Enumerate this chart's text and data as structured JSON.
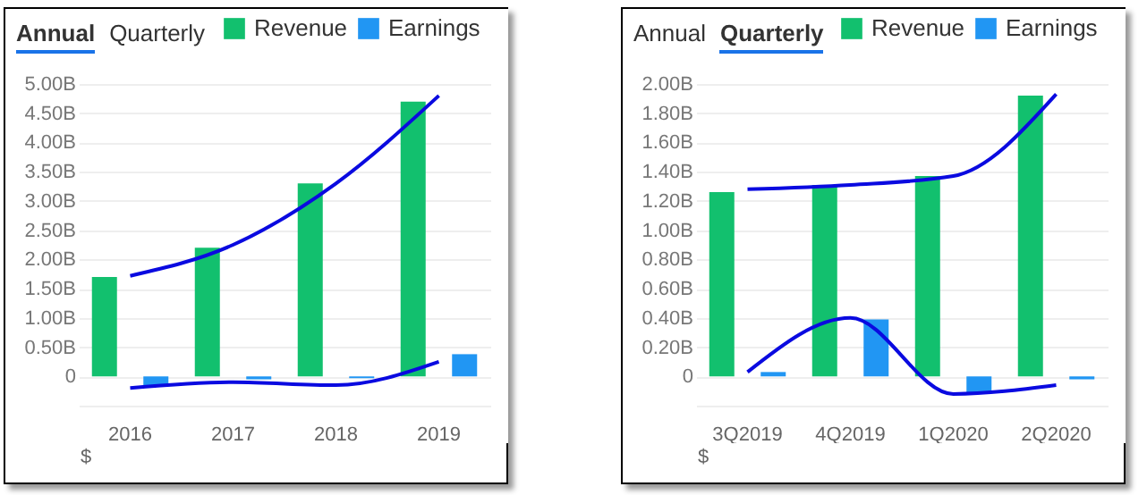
{
  "chart_data": [
    {
      "type": "bar",
      "annotations": [
        "Annual",
        "Quarterly",
        "$"
      ],
      "categories": [
        "2016",
        "2017",
        "2018",
        "2019"
      ],
      "series": [
        {
          "name": "Revenue",
          "color": "#12c06e",
          "values": [
            1.7,
            2.2,
            3.3,
            4.7
          ]
        },
        {
          "name": "Earnings",
          "color": "#2196f3",
          "values": [
            -0.17,
            -0.05,
            -0.03,
            0.38
          ]
        },
        {
          "type": "line",
          "color": "#0a0ae0",
          "values": [
            1.72,
            2.25,
            3.3,
            4.8
          ]
        },
        {
          "type": "line",
          "color": "#0a0ae0",
          "values": [
            -0.2,
            -0.1,
            -0.15,
            0.25
          ]
        }
      ],
      "ylim": [
        -0.5,
        5.0
      ],
      "yticks": [
        {
          "value": -0.5,
          "label": null
        },
        0,
        {
          "value": 0.5,
          "label": "0.50B"
        },
        {
          "value": 1.0,
          "label": "1.00B"
        },
        {
          "value": 1.5,
          "label": "1.50B"
        },
        {
          "value": 2.0,
          "label": "2.00B"
        },
        {
          "value": 2.5,
          "label": "2.50B"
        },
        {
          "value": 3.0,
          "label": "3.00B"
        },
        {
          "value": 3.5,
          "label": "3.50B"
        },
        {
          "value": 4.0,
          "label": "4.00B"
        },
        {
          "value": 4.5,
          "label": "4.50B"
        },
        {
          "value": 5.0,
          "label": "5.00B"
        }
      ],
      "grid": "y",
      "legend": "top right"
    },
    {
      "type": "bar",
      "annotations": [
        "Annual",
        "Quarterly",
        "$"
      ],
      "categories": [
        "3Q2019",
        "4Q2019",
        "1Q2020",
        "2Q2020"
      ],
      "series": [
        {
          "name": "Revenue",
          "color": "#12c06e",
          "values": [
            1.26,
            1.31,
            1.37,
            1.92
          ]
        },
        {
          "name": "Earnings",
          "color": "#2196f3",
          "values": [
            0.03,
            0.39,
            -0.11,
            -0.02
          ]
        },
        {
          "type": "line",
          "color": "#0a0ae0",
          "values": [
            1.28,
            1.31,
            1.37,
            1.93
          ]
        },
        {
          "type": "line",
          "color": "#0a0ae0",
          "values": [
            0.03,
            0.4,
            -0.12,
            -0.06
          ]
        }
      ],
      "ylim": [
        -0.2,
        2.0
      ],
      "yticks": [
        {
          "value": -0.2,
          "label": null
        },
        0,
        {
          "value": 0.2,
          "label": "0.20B"
        },
        {
          "value": 0.4,
          "label": "0.40B"
        },
        {
          "value": 0.6,
          "label": "0.60B"
        },
        {
          "value": 0.8,
          "label": "0.80B"
        },
        {
          "value": 1.0,
          "label": "1.00B"
        },
        {
          "value": 1.2,
          "label": "1.20B"
        },
        {
          "value": 1.4,
          "label": "1.40B"
        },
        {
          "value": 1.6,
          "label": "1.60B"
        },
        {
          "value": 1.8,
          "label": "1.80B"
        },
        {
          "value": 2.0,
          "label": "2.00B"
        }
      ],
      "grid": "y",
      "legend": "top right"
    }
  ]
}
